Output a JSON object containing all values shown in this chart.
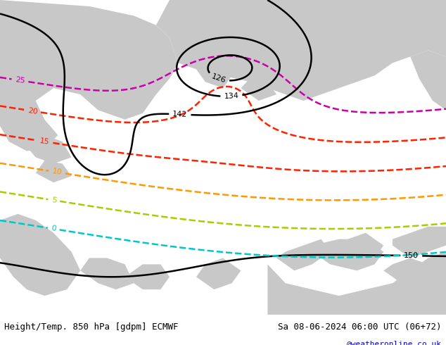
{
  "title_left": "Height/Temp. 850 hPa [gdpm] ECMWF",
  "title_right": "Sa 08-06-2024 06:00 UTC (06+72)",
  "credit": "@weatheronline.co.uk",
  "bg_green": "#b8d4a0",
  "bg_gray": "#c8c8c8",
  "bg_white": "#f0f0f0",
  "fig_bg": "#ffffff",
  "color_black": "#000000",
  "color_cyan": "#00c8c8",
  "color_lime": "#aacc00",
  "color_orange": "#ff9900",
  "color_red": "#ff2200",
  "color_magenta": "#cc00aa",
  "color_blue": "#0000cc",
  "figsize": [
    6.34,
    4.9
  ],
  "dpi": 100
}
